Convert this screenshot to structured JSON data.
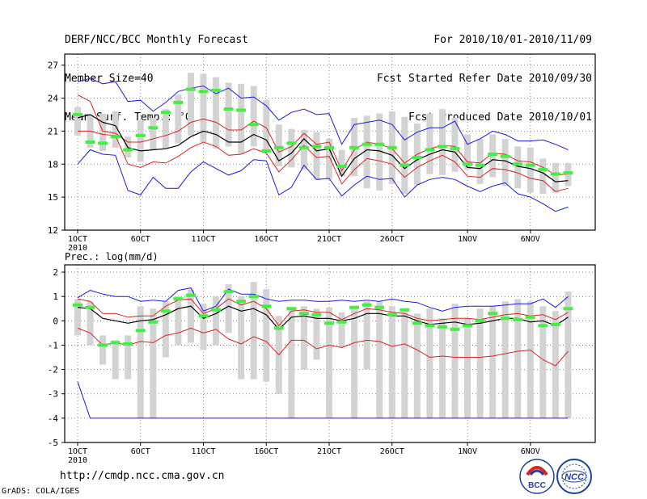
{
  "header": {
    "left": [
      "DERF/NCC/BCC Monthly Forecast",
      "Member Size=40",
      "Mean Surf. Temp.: °C"
    ],
    "right": [
      "For 2010/10/01-2010/11/09",
      "Fcst Started Refer Date 2010/09/30",
      "Fcst Produced Date 2010/10/01"
    ]
  },
  "footer": {
    "url": "http://cmdp.ncc.cma.gov.cn",
    "credit": "GrADS: COLA/IGES",
    "logo_bcc": "BCC",
    "logo_ncc": "NCC"
  },
  "colors": {
    "box": "#d3d3d3",
    "green": "#44ee44",
    "mean": "#000000",
    "inner": "#dd2222",
    "outer": "#1a1add",
    "grid": "#666666"
  },
  "chart_data": [
    {
      "type": "line",
      "title": "Mean Surf. Temp.: °C",
      "ylabel": "°C",
      "ylim": [
        12,
        28
      ],
      "yticks": [
        12,
        15,
        18,
        21,
        24,
        27
      ],
      "xticklabels": [
        "1OCT",
        "6OCT",
        "11OCT",
        "16OCT",
        "21OCT",
        "26OCT",
        "1NOV",
        "6NOV"
      ],
      "xtick_days": [
        1,
        6,
        11,
        16,
        21,
        26,
        32,
        37
      ],
      "year_label": "2010",
      "days": [
        1,
        2,
        3,
        4,
        5,
        6,
        7,
        8,
        9,
        10,
        11,
        12,
        13,
        14,
        15,
        16,
        17,
        18,
        19,
        20,
        21,
        22,
        23,
        24,
        25,
        26,
        27,
        28,
        29,
        30,
        31,
        32,
        33,
        34,
        35,
        36,
        37,
        38,
        39,
        40
      ],
      "series": [
        {
          "name": "mean",
          "values": [
            22.2,
            22.5,
            21.8,
            21.5,
            19.5,
            19.2,
            19.3,
            19.4,
            19.7,
            20.5,
            21.0,
            20.7,
            20.0,
            20.0,
            20.7,
            20.2,
            18.3,
            19.0,
            20.3,
            19.2,
            19.4,
            16.9,
            18.5,
            19.3,
            19.2,
            18.8,
            17.6,
            18.4,
            18.9,
            19.3,
            19.1,
            17.7,
            17.6,
            18.4,
            18.3,
            17.8,
            17.6,
            17.2,
            16.4,
            16.5
          ]
        },
        {
          "name": "upper_inner",
          "values": [
            24.3,
            23.7,
            21.0,
            20.8,
            20.0,
            20.0,
            20.3,
            20.6,
            21.0,
            21.8,
            22.1,
            21.8,
            21.1,
            21.1,
            21.9,
            21.3,
            19.1,
            19.6,
            20.8,
            19.8,
            20.0,
            17.4,
            19.3,
            20.0,
            19.8,
            19.4,
            18.1,
            18.9,
            19.4,
            19.7,
            19.6,
            18.2,
            18.1,
            19.0,
            18.9,
            18.3,
            18.2,
            17.7,
            17.0,
            17.1
          ]
        },
        {
          "name": "lower_inner",
          "values": [
            21.0,
            21.0,
            20.7,
            20.6,
            18.0,
            17.7,
            18.2,
            18.1,
            18.7,
            19.5,
            20.0,
            19.6,
            18.8,
            18.9,
            19.4,
            19.0,
            17.3,
            18.4,
            19.7,
            18.6,
            18.7,
            16.2,
            17.5,
            18.5,
            18.3,
            18.0,
            16.8,
            17.7,
            18.3,
            18.8,
            18.2,
            16.9,
            16.8,
            17.6,
            17.5,
            17.2,
            16.7,
            16.5,
            15.5,
            15.8
          ]
        },
        {
          "name": "upper_outer",
          "values": [
            25.5,
            25.8,
            25.3,
            25.5,
            23.7,
            23.8,
            22.8,
            23.6,
            24.6,
            24.9,
            25.1,
            24.4,
            24.9,
            24.0,
            24.1,
            23.3,
            22.0,
            22.7,
            23.0,
            22.5,
            22.6,
            19.8,
            21.6,
            21.8,
            22.0,
            21.6,
            20.2,
            20.9,
            21.3,
            21.3,
            21.9,
            19.8,
            20.3,
            21.0,
            20.7,
            20.1,
            20.1,
            20.2,
            19.8,
            19.3
          ]
        },
        {
          "name": "lower_outer",
          "values": [
            18.0,
            19.3,
            18.9,
            18.8,
            15.6,
            15.2,
            16.8,
            15.8,
            15.8,
            17.3,
            18.2,
            17.6,
            17.0,
            17.4,
            18.4,
            18.3,
            15.2,
            15.9,
            17.9,
            16.6,
            16.7,
            15.1,
            16.1,
            16.9,
            16.6,
            16.7,
            15.0,
            16.1,
            16.6,
            16.8,
            16.6,
            16.0,
            15.5,
            16.0,
            16.3,
            15.3,
            15.0,
            14.4,
            13.7,
            14.1
          ]
        },
        {
          "name": "box_high",
          "values": [
            23.2,
            22.5,
            22.6,
            22.8,
            20.5,
            22.0,
            22.2,
            23.0,
            24.3,
            26.3,
            26.2,
            25.9,
            25.4,
            25.3,
            25.1,
            23.8,
            21.6,
            21.2,
            21.1,
            20.9,
            20.3,
            19.3,
            22.2,
            22.4,
            22.6,
            22.8,
            22.3,
            21.7,
            22.6,
            23.0,
            22.2,
            20.7,
            20.3,
            20.7,
            20.3,
            19.6,
            19.5,
            18.5,
            18.1,
            18.1
          ]
        },
        {
          "name": "box_low",
          "values": [
            20.6,
            19.5,
            19.2,
            19.5,
            18.6,
            18.2,
            19.3,
            19.4,
            19.9,
            20.6,
            20.0,
            19.4,
            19.6,
            18.9,
            19.6,
            19.2,
            17.8,
            17.7,
            17.5,
            16.6,
            16.6,
            16.9,
            16.9,
            15.8,
            15.6,
            16.2,
            15.3,
            16.1,
            17.1,
            17.0,
            17.3,
            17.5,
            16.2,
            16.8,
            16.0,
            15.8,
            15.4,
            15.3,
            15.4,
            16.0
          ]
        },
        {
          "name": "median",
          "values": [
            22.5,
            20.0,
            19.9,
            20.5,
            19.3,
            20.6,
            21.3,
            22.7,
            23.6,
            24.8,
            24.6,
            24.7,
            23.0,
            22.9,
            21.6,
            19.2,
            19.5,
            19.9,
            19.5,
            19.6,
            19.5,
            17.8,
            19.5,
            19.8,
            19.8,
            19.5,
            17.9,
            18.6,
            19.3,
            19.6,
            19.4,
            18.0,
            17.9,
            18.9,
            18.7,
            18.0,
            17.9,
            17.5,
            17.1,
            17.2
          ]
        }
      ]
    },
    {
      "type": "line",
      "title": "Prec.: log(mm/d)",
      "ylabel": "log(mm/d)",
      "ylim": [
        -5,
        2.3
      ],
      "yticks": [
        -5,
        -4,
        -3,
        -2,
        -1,
        0,
        1,
        2
      ],
      "xticklabels": [
        "1OCT",
        "6OCT",
        "11OCT",
        "16OCT",
        "21OCT",
        "26OCT",
        "1NOV",
        "6NOV"
      ],
      "xtick_days": [
        1,
        6,
        11,
        16,
        21,
        26,
        32,
        37
      ],
      "year_label": "2010",
      "days": [
        1,
        2,
        3,
        4,
        5,
        6,
        7,
        8,
        9,
        10,
        11,
        12,
        13,
        14,
        15,
        16,
        17,
        18,
        19,
        20,
        21,
        22,
        23,
        24,
        25,
        26,
        27,
        28,
        29,
        30,
        31,
        32,
        33,
        34,
        35,
        36,
        37,
        38,
        39,
        40
      ],
      "series": [
        {
          "name": "mean",
          "values": [
            0.55,
            0.5,
            0.1,
            0.0,
            -0.1,
            0.0,
            0.05,
            0.25,
            0.5,
            0.6,
            0.1,
            0.3,
            0.6,
            0.4,
            0.5,
            0.25,
            -0.35,
            0.15,
            0.2,
            0.1,
            0.1,
            0.0,
            0.1,
            0.3,
            0.3,
            0.2,
            0.2,
            0.0,
            -0.15,
            -0.1,
            -0.05,
            -0.15,
            -0.1,
            0.0,
            0.1,
            0.1,
            -0.05,
            0.0,
            -0.2,
            0.15
          ]
        },
        {
          "name": "upper_inner",
          "values": [
            0.9,
            0.8,
            0.3,
            0.3,
            0.15,
            0.2,
            0.2,
            0.6,
            0.85,
            0.9,
            0.3,
            0.5,
            0.9,
            0.65,
            0.8,
            0.5,
            -0.2,
            0.4,
            0.45,
            0.35,
            0.35,
            0.05,
            0.3,
            0.5,
            0.45,
            0.35,
            0.3,
            0.1,
            0.0,
            0.05,
            0.1,
            0.1,
            0.05,
            0.15,
            0.25,
            0.3,
            0.2,
            0.25,
            0.05,
            0.35
          ]
        },
        {
          "name": "lower_inner",
          "values": [
            -0.3,
            -0.5,
            -1.0,
            -0.9,
            -1.0,
            -0.85,
            -0.9,
            -0.6,
            -0.5,
            -0.3,
            -0.5,
            -0.35,
            -0.75,
            -0.95,
            -0.65,
            -0.85,
            -1.4,
            -0.8,
            -0.8,
            -1.15,
            -1.0,
            -1.1,
            -0.9,
            -0.8,
            -0.85,
            -1.05,
            -0.95,
            -1.2,
            -1.5,
            -1.45,
            -1.5,
            -1.5,
            -1.5,
            -1.45,
            -1.35,
            -1.25,
            -1.2,
            -1.6,
            -1.85,
            -1.25
          ]
        },
        {
          "name": "upper_outer",
          "values": [
            0.95,
            1.25,
            1.1,
            1.0,
            1.0,
            0.8,
            0.85,
            0.8,
            1.25,
            1.35,
            0.4,
            0.6,
            1.3,
            1.1,
            1.1,
            0.9,
            0.8,
            0.85,
            0.85,
            0.8,
            0.8,
            0.85,
            0.8,
            0.85,
            0.8,
            0.9,
            0.8,
            0.75,
            0.55,
            0.4,
            0.55,
            0.6,
            0.6,
            0.6,
            0.65,
            0.7,
            0.7,
            0.9,
            0.55,
            1.0
          ]
        },
        {
          "name": "lower_outer",
          "values": [
            -2.5,
            -4.0,
            -4.0,
            -4.0,
            -4.0,
            -4.0,
            -4.0,
            -4.0,
            -4.0,
            -4.0,
            -4.0,
            -4.0,
            -4.0,
            -4.0,
            -4.0,
            -4.0,
            -4.0,
            -4.0,
            -4.0,
            -4.0,
            -4.0,
            -4.0,
            -4.0,
            -4.0,
            -4.0,
            -4.0,
            -4.0,
            -4.0,
            -4.0,
            -4.0,
            -4.0,
            -4.0,
            -4.0,
            -4.0,
            -4.0,
            -4.0,
            -4.0,
            -4.0,
            -4.0,
            -4.0
          ]
        },
        {
          "name": "box_high",
          "values": [
            0.9,
            0.8,
            -0.6,
            -0.8,
            -0.6,
            0.6,
            0.5,
            0.8,
            1.0,
            1.3,
            0.7,
            1.0,
            1.5,
            1.0,
            1.6,
            1.3,
            0.2,
            0.5,
            0.6,
            0.5,
            0.55,
            0.35,
            0.6,
            0.8,
            0.8,
            0.6,
            0.5,
            0.3,
            0.5,
            0.1,
            0.7,
            0.1,
            0.5,
            0.6,
            0.8,
            0.9,
            0.8,
            0.6,
            0.4,
            1.2
          ]
        },
        {
          "name": "box_low",
          "values": [
            -0.6,
            -1.0,
            -1.8,
            -2.4,
            -2.4,
            -4.0,
            -4.0,
            -1.5,
            -1.0,
            -0.9,
            -1.2,
            -1.0,
            -0.5,
            -2.4,
            -2.4,
            -2.5,
            -3.0,
            -4.0,
            -2.0,
            -1.6,
            -4.0,
            -1.1,
            -4.0,
            -2.0,
            -4.0,
            -4.0,
            -4.0,
            -4.0,
            -4.0,
            -4.0,
            -4.0,
            -4.0,
            -4.0,
            -4.0,
            -4.0,
            -4.0,
            -4.0,
            -4.0,
            -4.0,
            -4.0
          ]
        },
        {
          "name": "median",
          "values": [
            0.65,
            0.55,
            -1.0,
            -0.9,
            -0.95,
            -0.4,
            -0.05,
            0.4,
            0.9,
            1.05,
            0.2,
            0.45,
            1.2,
            0.8,
            1.0,
            0.6,
            -0.3,
            0.5,
            0.3,
            0.25,
            -0.1,
            -0.05,
            0.55,
            0.65,
            0.55,
            0.25,
            0.45,
            -0.1,
            -0.2,
            -0.25,
            -0.35,
            -0.2,
            0.0,
            0.3,
            0.1,
            0.05,
            0.15,
            -0.2,
            -0.15,
            0.5
          ]
        }
      ]
    }
  ]
}
